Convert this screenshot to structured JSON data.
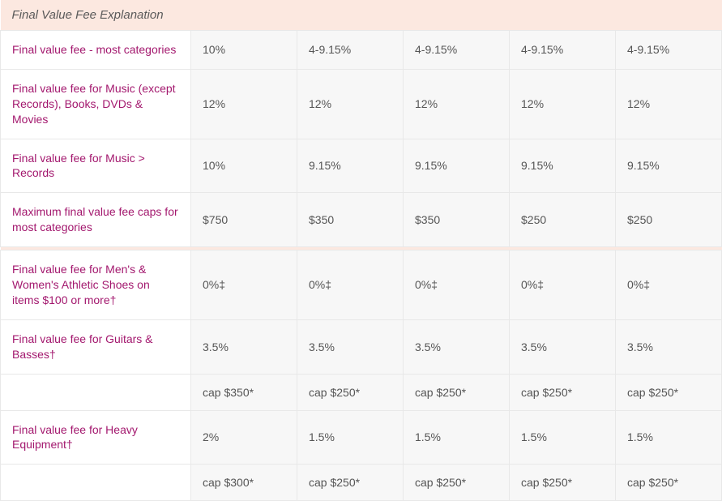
{
  "title": "Final Value Fee Explanation",
  "rows": [
    {
      "label": "Final value fee - most categories",
      "cells": [
        "10%",
        "4-9.15%",
        "4-9.15%",
        "4-9.15%",
        "4-9.15%"
      ]
    },
    {
      "label": "Final value fee for Music (except Records), Books, DVDs & Movies",
      "cells": [
        "12%",
        "12%",
        "12%",
        "12%",
        "12%"
      ]
    },
    {
      "label": "Final value fee for Music > Records",
      "cells": [
        "10%",
        "9.15%",
        "9.15%",
        "9.15%",
        "9.15%"
      ]
    },
    {
      "label": "Maximum final value fee caps for most categories",
      "cells": [
        "$750",
        "$350",
        "$350",
        "$250",
        "$250"
      ]
    }
  ],
  "rows2": [
    {
      "label": "Final value fee for Men's & Women's Athletic Shoes on items $100 or more†",
      "cells": [
        "0%‡",
        "0%‡",
        "0%‡",
        "0%‡",
        "0%‡"
      ]
    },
    {
      "label": "Final value fee for Guitars & Basses†",
      "cells": [
        "3.5%",
        "3.5%",
        "3.5%",
        "3.5%",
        "3.5%"
      ]
    },
    {
      "label": "",
      "cells": [
        "cap $350*",
        "cap $250*",
        "cap $250*",
        "cap $250*",
        "cap $250*"
      ]
    },
    {
      "label": "Final value fee for Heavy Equipment†",
      "cells": [
        "2%",
        "1.5%",
        "1.5%",
        "1.5%",
        "1.5%"
      ]
    },
    {
      "label": "",
      "cells": [
        "cap $300*",
        "cap $250*",
        "cap $250*",
        "cap $250*",
        "cap $250*"
      ]
    }
  ]
}
